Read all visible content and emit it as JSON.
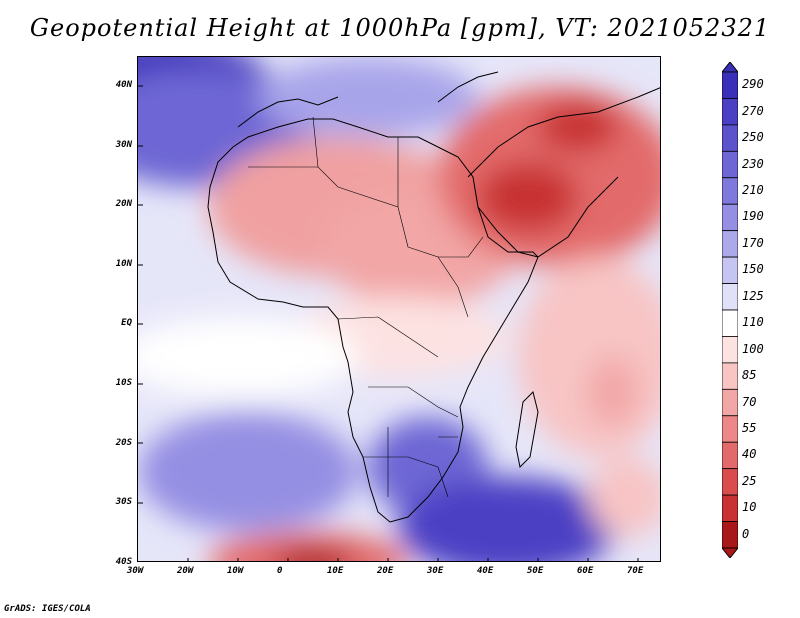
{
  "title": "Geopotential Height at 1000hPa [gpm], VT: 2021052321",
  "credit": "GrADS: IGES/COLA",
  "map": {
    "lon_range": [
      -30,
      75
    ],
    "lat_range": [
      -40,
      45
    ],
    "lon_ticks": [
      "30W",
      "20W",
      "10W",
      "0",
      "10E",
      "20E",
      "30E",
      "40E",
      "50E",
      "60E",
      "70E"
    ],
    "lat_ticks": [
      "40N",
      "30N",
      "20N",
      "10N",
      "EQ",
      "10S",
      "20S",
      "30S",
      "40S"
    ]
  },
  "colorbar": {
    "levels": [
      "290",
      "270",
      "250",
      "230",
      "210",
      "190",
      "170",
      "150",
      "125",
      "110",
      "100",
      "85",
      "70",
      "55",
      "40",
      "25",
      "10",
      "0"
    ],
    "colors": [
      "#3a2fb8",
      "#4b40c4",
      "#5b52cc",
      "#6d66d4",
      "#8079dc",
      "#958fe3",
      "#aca8ea",
      "#c6c4f1",
      "#e0e0f8",
      "#ffffff",
      "#fde2e2",
      "#f8c4c4",
      "#f2a6a6",
      "#ec8888",
      "#e36a6a",
      "#d94d4d",
      "#c83232",
      "#a81818"
    ]
  }
}
